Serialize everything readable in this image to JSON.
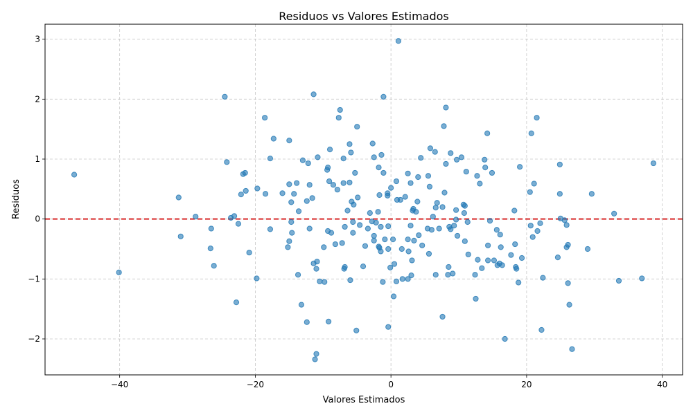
{
  "chart_data": {
    "type": "scatter",
    "title": "Residuos vs Valores Estimados",
    "xlabel": "Valores Estimados",
    "ylabel": "Residuos",
    "xlim": [
      -51,
      43
    ],
    "ylim": [
      -2.6,
      3.25
    ],
    "xticks": [
      -40,
      -20,
      0,
      20,
      40
    ],
    "yticks": [
      -2,
      -1,
      0,
      1,
      2,
      3
    ],
    "xtick_labels": [
      "−40",
      "−20",
      "0",
      "20",
      "40"
    ],
    "ytick_labels": [
      "−2",
      "−1",
      "0",
      "1",
      "2",
      "3"
    ],
    "grid": true,
    "reference_line": {
      "y": 0,
      "color": "#d62728",
      "style": "dashed"
    },
    "point_color": "#1f77b4",
    "points": [
      [
        -46.7,
        0.74
      ],
      [
        -40.1,
        -0.89
      ],
      [
        -31.3,
        0.36
      ],
      [
        -31.0,
        -0.29
      ],
      [
        -28.8,
        0.04
      ],
      [
        -26.6,
        -0.49
      ],
      [
        -26.5,
        -0.16
      ],
      [
        -26.1,
        -0.78
      ],
      [
        -24.5,
        2.04
      ],
      [
        -24.2,
        0.95
      ],
      [
        -23.6,
        0.02
      ],
      [
        -23.1,
        0.05
      ],
      [
        -22.8,
        -1.39
      ],
      [
        -22.5,
        -0.08
      ],
      [
        -22.1,
        0.41
      ],
      [
        -21.8,
        0.75
      ],
      [
        -21.5,
        0.77
      ],
      [
        -21.4,
        0.47
      ],
      [
        -20.9,
        -0.56
      ],
      [
        -19.8,
        -0.99
      ],
      [
        -19.7,
        0.51
      ],
      [
        -18.6,
        1.69
      ],
      [
        -18.5,
        0.42
      ],
      [
        -17.8,
        -0.17
      ],
      [
        -17.8,
        1.01
      ],
      [
        -17.3,
        1.34
      ],
      [
        -16.0,
        0.43
      ],
      [
        -15.2,
        -0.47
      ],
      [
        -15.0,
        -0.37
      ],
      [
        -15.0,
        1.31
      ],
      [
        -15.0,
        0.58
      ],
      [
        -14.7,
        0.28
      ],
      [
        -14.7,
        -0.05
      ],
      [
        -14.6,
        -0.23
      ],
      [
        -14.3,
        0.42
      ],
      [
        -13.9,
        0.6
      ],
      [
        -13.7,
        -0.93
      ],
      [
        -13.6,
        0.13
      ],
      [
        -13.2,
        -1.43
      ],
      [
        -13.0,
        0.98
      ],
      [
        -12.4,
        -1.72
      ],
      [
        -12.4,
        0.3
      ],
      [
        -12.2,
        0.93
      ],
      [
        -12.0,
        0.57
      ],
      [
        -12.0,
        -0.16
      ],
      [
        -11.6,
        0.35
      ],
      [
        -11.4,
        2.08
      ],
      [
        -11.4,
        -0.74
      ],
      [
        -11.2,
        -2.34
      ],
      [
        -11.0,
        -2.25
      ],
      [
        -11.0,
        -0.83
      ],
      [
        -10.9,
        -0.71
      ],
      [
        -10.8,
        1.03
      ],
      [
        -10.5,
        -1.04
      ],
      [
        -9.9,
        -0.47
      ],
      [
        -9.8,
        -1.05
      ],
      [
        -9.4,
        0.82
      ],
      [
        -9.3,
        0.86
      ],
      [
        -9.3,
        -0.2
      ],
      [
        -9.2,
        -1.71
      ],
      [
        -9.1,
        0.63
      ],
      [
        -9.0,
        1.16
      ],
      [
        -8.8,
        -0.23
      ],
      [
        -8.5,
        0.57
      ],
      [
        -8.2,
        -0.42
      ],
      [
        -7.9,
        0.49
      ],
      [
        -7.7,
        1.69
      ],
      [
        -7.5,
        1.82
      ],
      [
        -7.2,
        -0.4
      ],
      [
        -7.0,
        1.01
      ],
      [
        -7.0,
        0.6
      ],
      [
        -6.9,
        -0.83
      ],
      [
        -6.8,
        -0.8
      ],
      [
        -6.8,
        -0.13
      ],
      [
        -6.4,
        0.14
      ],
      [
        -6.1,
        1.25
      ],
      [
        -6.1,
        0.61
      ],
      [
        -6.0,
        -1.02
      ],
      [
        -5.9,
        1.11
      ],
      [
        -5.8,
        0.29
      ],
      [
        -5.6,
        -0.05
      ],
      [
        -5.6,
        -0.23
      ],
      [
        -5.5,
        0.24
      ],
      [
        -5.3,
        0.77
      ],
      [
        -5.1,
        -1.86
      ],
      [
        -5.0,
        1.54
      ],
      [
        -4.9,
        0.36
      ],
      [
        -4.6,
        -0.1
      ],
      [
        -4.1,
        -0.79
      ],
      [
        -3.8,
        -0.45
      ],
      [
        -3.4,
        -0.16
      ],
      [
        -3.1,
        0.1
      ],
      [
        -2.8,
        -0.04
      ],
      [
        -2.7,
        1.26
      ],
      [
        -2.5,
        1.03
      ],
      [
        -2.5,
        -0.28
      ],
      [
        -2.5,
        -0.36
      ],
      [
        -2.2,
        -0.06
      ],
      [
        -1.9,
        0.12
      ],
      [
        -1.8,
        -0.46
      ],
      [
        -1.8,
        0.86
      ],
      [
        -1.7,
        -0.48
      ],
      [
        -1.7,
        0.4
      ],
      [
        -1.5,
        -0.54
      ],
      [
        -1.5,
        -0.13
      ],
      [
        -1.4,
        1.07
      ],
      [
        -1.2,
        -1.05
      ],
      [
        -1.1,
        2.04
      ],
      [
        -1.1,
        0.77
      ],
      [
        -0.9,
        -0.34
      ],
      [
        -0.5,
        0.43
      ],
      [
        -0.5,
        0.39
      ],
      [
        -0.4,
        -1.8
      ],
      [
        -0.4,
        -0.12
      ],
      [
        -0.4,
        -0.5
      ],
      [
        -0.1,
        -0.81
      ],
      [
        0.0,
        0.52
      ],
      [
        0.3,
        -0.34
      ],
      [
        0.4,
        -1.29
      ],
      [
        0.5,
        -0.75
      ],
      [
        0.8,
        -1.04
      ],
      [
        0.8,
        0.63
      ],
      [
        0.9,
        0.32
      ],
      [
        1.1,
        2.97
      ],
      [
        1.4,
        0.32
      ],
      [
        1.6,
        -0.5
      ],
      [
        1.7,
        -1.0
      ],
      [
        2.1,
        0.37
      ],
      [
        2.5,
        -0.34
      ],
      [
        2.5,
        -1.0
      ],
      [
        2.5,
        0.76
      ],
      [
        2.6,
        -0.54
      ],
      [
        2.9,
        0.6
      ],
      [
        2.9,
        -0.11
      ],
      [
        3.0,
        -0.94
      ],
      [
        3.1,
        -0.69
      ],
      [
        3.2,
        0.14
      ],
      [
        3.3,
        0.17
      ],
      [
        3.4,
        -0.36
      ],
      [
        3.7,
        0.12
      ],
      [
        3.9,
        0.29
      ],
      [
        4.0,
        0.7
      ],
      [
        4.1,
        -0.27
      ],
      [
        4.4,
        1.02
      ],
      [
        4.6,
        -0.44
      ],
      [
        5.4,
        -0.16
      ],
      [
        5.5,
        0.72
      ],
      [
        5.6,
        -0.58
      ],
      [
        5.7,
        0.54
      ],
      [
        5.8,
        1.18
      ],
      [
        6.0,
        -0.18
      ],
      [
        6.2,
        0.04
      ],
      [
        6.5,
        1.12
      ],
      [
        6.6,
        -0.93
      ],
      [
        6.6,
        0.19
      ],
      [
        6.8,
        0.27
      ],
      [
        7.1,
        -0.16
      ],
      [
        7.6,
        0.2
      ],
      [
        7.6,
        -1.63
      ],
      [
        7.8,
        1.55
      ],
      [
        7.9,
        0.44
      ],
      [
        8.1,
        1.86
      ],
      [
        8.1,
        0.92
      ],
      [
        8.4,
        -0.93
      ],
      [
        8.5,
        -0.8
      ],
      [
        8.6,
        -0.13
      ],
      [
        8.8,
        1.1
      ],
      [
        8.8,
        -0.17
      ],
      [
        9.1,
        -0.91
      ],
      [
        9.3,
        -0.11
      ],
      [
        9.6,
        -0.01
      ],
      [
        9.6,
        0.15
      ],
      [
        9.7,
        0.99
      ],
      [
        9.8,
        -0.28
      ],
      [
        10.4,
        1.03
      ],
      [
        10.7,
        0.24
      ],
      [
        10.8,
        0.1
      ],
      [
        10.9,
        0.22
      ],
      [
        10.9,
        -0.37
      ],
      [
        11.1,
        0.79
      ],
      [
        11.3,
        -0.05
      ],
      [
        11.4,
        -0.59
      ],
      [
        12.4,
        -0.93
      ],
      [
        12.5,
        -1.33
      ],
      [
        12.7,
        0.72
      ],
      [
        12.8,
        -0.68
      ],
      [
        13.1,
        0.59
      ],
      [
        13.4,
        -0.82
      ],
      [
        13.8,
        0.99
      ],
      [
        13.9,
        0.86
      ],
      [
        14.2,
        1.43
      ],
      [
        14.3,
        -0.44
      ],
      [
        14.3,
        -0.69
      ],
      [
        14.6,
        -0.03
      ],
      [
        14.9,
        0.77
      ],
      [
        15.2,
        -0.69
      ],
      [
        15.6,
        -0.18
      ],
      [
        15.7,
        -0.77
      ],
      [
        16.0,
        -0.74
      ],
      [
        16.1,
        -0.26
      ],
      [
        16.2,
        -0.47
      ],
      [
        16.4,
        -0.77
      ],
      [
        16.8,
        -2.0
      ],
      [
        17.7,
        -0.6
      ],
      [
        18.2,
        0.14
      ],
      [
        18.3,
        -0.42
      ],
      [
        18.4,
        -0.8
      ],
      [
        18.5,
        -0.83
      ],
      [
        18.8,
        -1.06
      ],
      [
        19.0,
        0.87
      ],
      [
        19.3,
        -0.65
      ],
      [
        20.5,
        0.45
      ],
      [
        20.6,
        -0.11
      ],
      [
        20.7,
        1.43
      ],
      [
        20.9,
        -0.3
      ],
      [
        21.1,
        0.59
      ],
      [
        21.5,
        1.69
      ],
      [
        21.6,
        -0.2
      ],
      [
        22.0,
        -0.07
      ],
      [
        22.2,
        -1.85
      ],
      [
        22.4,
        -0.98
      ],
      [
        24.6,
        -0.64
      ],
      [
        24.9,
        0.91
      ],
      [
        24.9,
        0.42
      ],
      [
        25.0,
        0.01
      ],
      [
        25.6,
        -0.02
      ],
      [
        25.9,
        -0.47
      ],
      [
        25.9,
        -0.1
      ],
      [
        26.1,
        -0.43
      ],
      [
        26.1,
        -1.07
      ],
      [
        26.3,
        -1.43
      ],
      [
        26.7,
        -2.17
      ],
      [
        29.0,
        -0.5
      ],
      [
        29.6,
        0.42
      ],
      [
        32.9,
        0.09
      ],
      [
        33.6,
        -1.03
      ],
      [
        37.0,
        -0.99
      ],
      [
        38.7,
        0.93
      ]
    ]
  }
}
